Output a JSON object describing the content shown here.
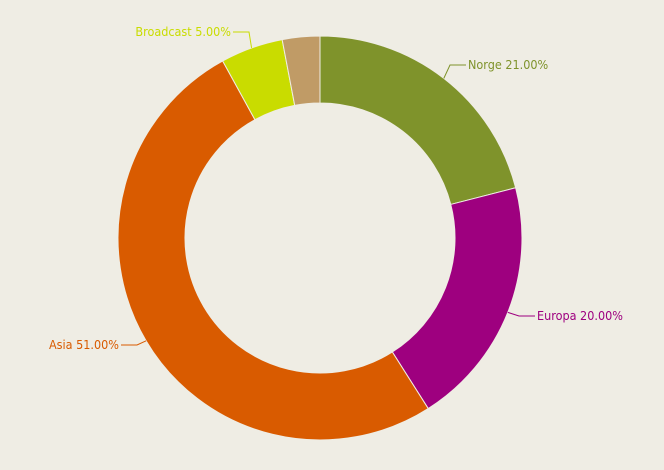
{
  "chart_data": {
    "type": "pie",
    "variant": "donut",
    "start_angle_deg": 0,
    "direction": "clockwise",
    "series": [
      {
        "name": "Norge",
        "value": 21.0,
        "label": "Norge 21.00%",
        "color": "#7f932b",
        "label_side": "right"
      },
      {
        "name": "Europa",
        "value": 20.0,
        "label": "Europa 20.00%",
        "color": "#9e007f",
        "label_side": "right"
      },
      {
        "name": "Asia",
        "value": 51.0,
        "label": "Asia 51.00%",
        "color": "#d95b00",
        "label_side": "left"
      },
      {
        "name": "Broadcast",
        "value": 5.0,
        "label": "Broadcast 5.00%",
        "color": "#c9dc00",
        "label_side": "left"
      },
      {
        "name": "",
        "value": 3.0,
        "label": "",
        "color": "#c09b66",
        "label_side": "none"
      }
    ],
    "background": "#efede4",
    "legend": "none"
  }
}
